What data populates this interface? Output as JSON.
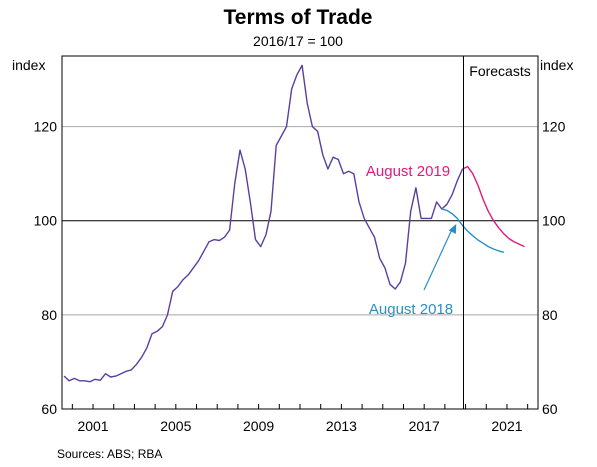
{
  "chart_data": {
    "type": "line",
    "title": "Terms of Trade",
    "subtitle": "2016/17 = 100",
    "ylabel_left": "index",
    "ylabel_right": "index",
    "ylim": [
      60,
      135
    ],
    "xlim": [
      1999.5,
      2022.5
    ],
    "y_ticks": [
      60,
      80,
      100,
      120
    ],
    "x_ticks": [
      2001,
      2005,
      2009,
      2013,
      2017,
      2021
    ],
    "x_tick_labels": [
      "2001",
      "2005",
      "2009",
      "2013",
      "2017",
      "2021"
    ],
    "grid": true,
    "reference_line": 100,
    "forecast_start": 2018.9,
    "forecast_label": "Forecasts",
    "source": "Sources:   ABS; RBA",
    "colors": {
      "actual": "#5a3fa0",
      "aug2019": "#e0197d",
      "aug2018": "#2a8ec6"
    },
    "series": [
      {
        "name": "",
        "color": "#5a3fa0",
        "x": [
          1999.6,
          1999.85,
          2000.1,
          2000.35,
          2000.6,
          2000.85,
          2001.1,
          2001.35,
          2001.6,
          2001.85,
          2002.1,
          2002.35,
          2002.6,
          2002.85,
          2003.1,
          2003.35,
          2003.6,
          2003.85,
          2004.1,
          2004.35,
          2004.6,
          2004.85,
          2005.1,
          2005.35,
          2005.6,
          2005.85,
          2006.1,
          2006.35,
          2006.6,
          2006.85,
          2007.1,
          2007.35,
          2007.6,
          2007.85,
          2008.1,
          2008.35,
          2008.6,
          2008.85,
          2009.1,
          2009.35,
          2009.6,
          2009.85,
          2010.1,
          2010.35,
          2010.6,
          2010.85,
          2011.1,
          2011.35,
          2011.6,
          2011.85,
          2012.1,
          2012.35,
          2012.6,
          2012.85,
          2013.1,
          2013.35,
          2013.6,
          2013.85,
          2014.1,
          2014.35,
          2014.6,
          2014.85,
          2015.1,
          2015.35,
          2015.6,
          2015.85,
          2016.1,
          2016.35,
          2016.6,
          2016.85,
          2017.1,
          2017.35,
          2017.6,
          2017.85,
          2018.1,
          2018.35,
          2018.6,
          2018.85
        ],
        "values": [
          67,
          66,
          66.5,
          66,
          66,
          65.8,
          66.3,
          66.1,
          67.5,
          66.8,
          67,
          67.5,
          68,
          68.3,
          69.5,
          71,
          73,
          76,
          76.5,
          77.5,
          80,
          85,
          86,
          87.5,
          88.5,
          90,
          91.5,
          93.5,
          95.5,
          96,
          95.8,
          96.5,
          98,
          108,
          115,
          111,
          104,
          96,
          94.5,
          97,
          102,
          116,
          118,
          120,
          128,
          131,
          133,
          125,
          120,
          119,
          114,
          111,
          113.5,
          113,
          110,
          110.5,
          110,
          104,
          100.5,
          98.5,
          96.5,
          92,
          90,
          86.5,
          85.5,
          87,
          91,
          102,
          107,
          100.5,
          100.5,
          100.5,
          104,
          102.5,
          103.5,
          105.5,
          108.5,
          111
        ]
      },
      {
        "name": "August 2019",
        "color": "#e0197d",
        "x": [
          2018.85,
          2019.1,
          2019.35,
          2019.6,
          2019.85,
          2020.1,
          2020.35,
          2020.6,
          2020.85,
          2021.1,
          2021.35,
          2021.6,
          2021.85
        ],
        "values": [
          111,
          111.5,
          110,
          107.5,
          104.5,
          102,
          100,
          98.5,
          97.2,
          96.2,
          95.5,
          95,
          94.5
        ]
      },
      {
        "name": "August 2018",
        "color": "#2a8ec6",
        "x": [
          2017.85,
          2018.1,
          2018.35,
          2018.6,
          2018.85,
          2019.1,
          2019.35,
          2019.6,
          2019.85,
          2020.1,
          2020.35,
          2020.6,
          2020.85
        ],
        "values": [
          102.5,
          102.2,
          101.5,
          100.5,
          99,
          97.8,
          96.8,
          95.9,
          95.2,
          94.5,
          94,
          93.6,
          93.3
        ]
      }
    ],
    "annotations": [
      {
        "name": "label-aug2019",
        "text": "August 2019",
        "color": "#e0197d"
      },
      {
        "name": "label-aug2018",
        "text": "August 2018",
        "color": "#2a8ec6"
      }
    ]
  }
}
